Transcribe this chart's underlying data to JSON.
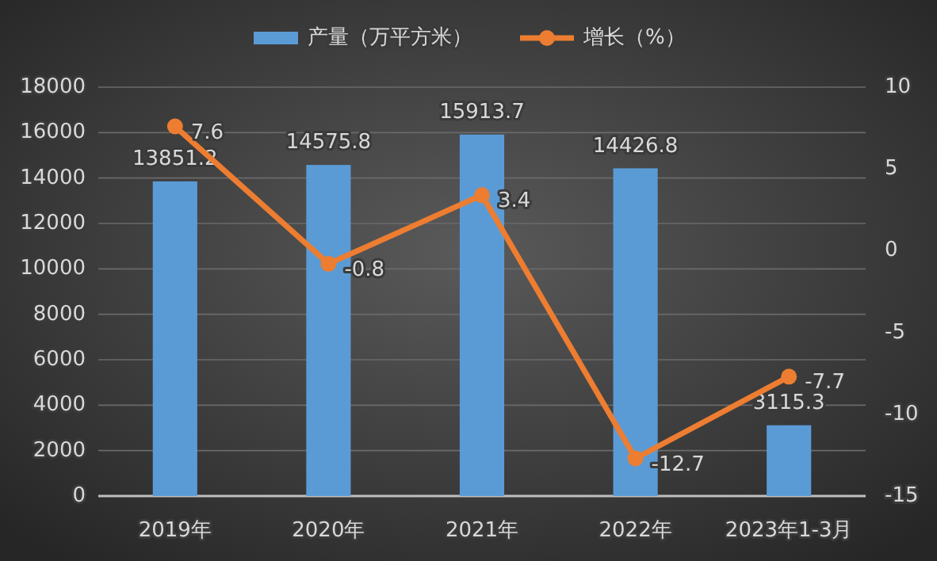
{
  "chart_data": {
    "type": "bar",
    "categories": [
      "2019年",
      "2020年",
      "2021年",
      "2022年",
      "2023年1-3月"
    ],
    "series": [
      {
        "name": "产量（万平方米）",
        "color": "#5b9bd5",
        "values": [
          13851.2,
          14575.8,
          15913.7,
          14426.8,
          3115.3
        ]
      },
      {
        "name": "增长（%）",
        "type": "line",
        "axis": "y2",
        "color": "#ed7d31",
        "values": [
          7.6,
          -0.8,
          3.4,
          -12.7,
          -7.7
        ]
      }
    ],
    "ylim": [
      0,
      18000
    ],
    "yticks": [
      0,
      2000,
      4000,
      6000,
      8000,
      10000,
      12000,
      14000,
      16000,
      18000
    ],
    "y2lim": [
      -15,
      10
    ],
    "y2ticks": [
      -15,
      -10,
      -5,
      0,
      5,
      10
    ],
    "grid": "y",
    "legend": "top",
    "marker": "circle",
    "line_style": "solid",
    "data_labels": true
  }
}
